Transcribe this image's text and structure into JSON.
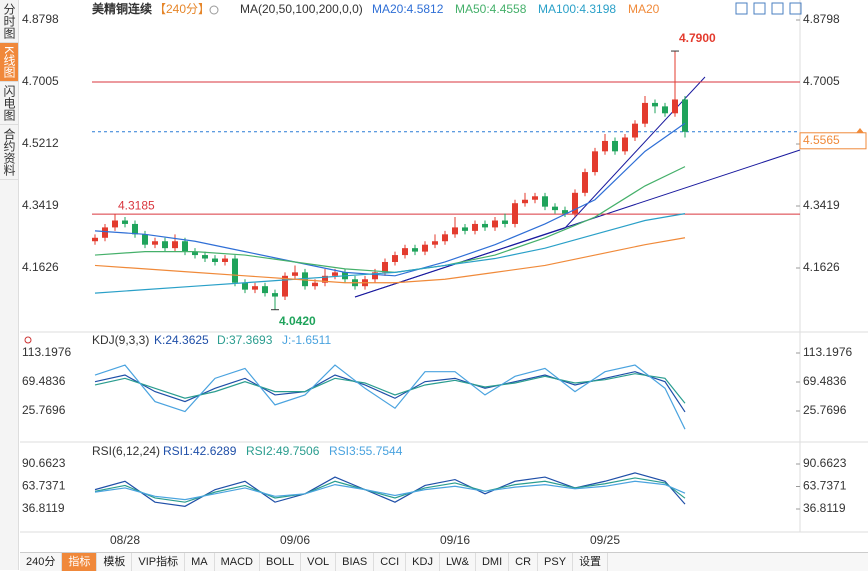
{
  "sidebar": [
    "分时图",
    "K线图",
    "闪电图",
    "合约资料"
  ],
  "toolbar": {
    "period": "240分",
    "items": [
      "指标",
      "模板",
      "VIP指标",
      "MA",
      "MACD",
      "BOLL",
      "VOL",
      "BIAS",
      "CCI",
      "KDJ",
      "LW&",
      "DMI",
      "CR",
      "PSY",
      "设置"
    ]
  },
  "chart_data": [
    {
      "type": "candlestick",
      "title": "美精铜连续",
      "subtitle": "【240分】",
      "indicator": "MA(20,50,100,200,0,0)",
      "categories": [
        null,
        null,
        null,
        "08/28",
        null,
        null,
        null,
        null,
        null,
        null,
        null,
        null,
        null,
        null,
        null,
        null,
        null,
        null,
        null,
        null,
        "09/06",
        null,
        null,
        null,
        null,
        null,
        null,
        null,
        null,
        null,
        null,
        null,
        null,
        null,
        null,
        null,
        "09/16",
        null,
        null,
        null,
        null,
        null,
        null,
        null,
        null,
        null,
        null,
        null,
        null,
        null,
        null,
        "09/25",
        null,
        null,
        null,
        null,
        null,
        null,
        null,
        null
      ],
      "open": [
        4.24,
        4.25,
        4.28,
        4.3,
        4.29,
        4.26,
        4.23,
        4.24,
        4.22,
        4.24,
        4.21,
        4.2,
        4.19,
        4.18,
        4.19,
        4.12,
        4.1,
        4.11,
        4.09,
        4.08,
        4.14,
        4.15,
        4.11,
        4.12,
        4.14,
        4.15,
        4.13,
        4.11,
        4.13,
        4.15,
        4.18,
        4.2,
        4.22,
        4.21,
        4.23,
        4.24,
        4.26,
        4.28,
        4.27,
        4.29,
        4.28,
        4.3,
        4.29,
        4.35,
        4.36,
        4.37,
        4.34,
        4.33,
        4.32,
        4.38,
        4.44,
        4.5,
        4.53,
        4.5,
        4.54,
        4.58,
        4.64,
        4.63,
        4.61,
        4.65
      ],
      "high": [
        4.26,
        4.29,
        4.3185,
        4.31,
        4.3,
        4.27,
        4.25,
        4.25,
        4.26,
        4.25,
        4.22,
        4.21,
        4.2,
        4.2,
        4.2,
        4.13,
        4.12,
        4.12,
        4.1,
        4.15,
        4.17,
        4.16,
        4.13,
        4.16,
        4.16,
        4.16,
        4.14,
        4.14,
        4.16,
        4.19,
        4.21,
        4.23,
        4.23,
        4.24,
        4.26,
        4.27,
        4.31,
        4.29,
        4.3,
        4.3,
        4.31,
        4.32,
        4.36,
        4.38,
        4.38,
        4.38,
        4.35,
        4.34,
        4.39,
        4.45,
        4.51,
        4.55,
        4.54,
        4.55,
        4.59,
        4.66,
        4.65,
        4.64,
        4.79,
        4.66
      ],
      "low": [
        4.23,
        4.24,
        4.27,
        4.28,
        4.25,
        4.22,
        4.22,
        4.21,
        4.21,
        4.2,
        4.19,
        4.18,
        4.17,
        4.17,
        4.11,
        4.09,
        4.09,
        4.08,
        4.042,
        4.07,
        4.13,
        4.1,
        4.1,
        4.11,
        4.13,
        4.12,
        4.1,
        4.1,
        4.12,
        4.14,
        4.17,
        4.19,
        4.2,
        4.2,
        4.22,
        4.23,
        4.25,
        4.26,
        4.26,
        4.27,
        4.27,
        4.28,
        4.28,
        4.34,
        4.35,
        4.33,
        4.32,
        4.31,
        4.31,
        4.37,
        4.43,
        4.49,
        4.49,
        4.49,
        4.53,
        4.57,
        4.61,
        4.6,
        4.6,
        4.54
      ],
      "close": [
        4.25,
        4.28,
        4.3,
        4.29,
        4.26,
        4.23,
        4.24,
        4.22,
        4.24,
        4.21,
        4.2,
        4.19,
        4.18,
        4.19,
        4.12,
        4.1,
        4.11,
        4.09,
        4.08,
        4.14,
        4.15,
        4.11,
        4.12,
        4.14,
        4.15,
        4.13,
        4.11,
        4.13,
        4.15,
        4.18,
        4.2,
        4.22,
        4.21,
        4.23,
        4.24,
        4.26,
        4.28,
        4.27,
        4.29,
        4.28,
        4.3,
        4.29,
        4.35,
        4.36,
        4.37,
        4.34,
        4.33,
        4.32,
        4.38,
        4.44,
        4.5,
        4.53,
        4.5,
        4.54,
        4.58,
        4.64,
        4.63,
        4.61,
        4.65,
        4.5565
      ],
      "up_color": "#e33b2e",
      "down_color": "#1fa35b",
      "x": [
        0,
        5,
        10,
        15,
        20,
        25,
        30,
        35,
        40,
        45,
        50,
        55,
        59
      ],
      "series": [
        {
          "name": "MA20:4.5812",
          "color": "#2f6fd6",
          "values": [
            4.27,
            4.26,
            4.24,
            4.21,
            4.18,
            4.15,
            4.14,
            4.18,
            4.23,
            4.29,
            4.36,
            4.5,
            4.5812
          ]
        },
        {
          "name": "MA50:4.4558",
          "color": "#45b06a",
          "values": [
            4.2,
            4.21,
            4.21,
            4.2,
            4.18,
            4.16,
            4.15,
            4.17,
            4.2,
            4.25,
            4.31,
            4.4,
            4.4558
          ]
        },
        {
          "name": "MA100:4.3198",
          "color": "#2aa0c8",
          "values": [
            4.09,
            4.1,
            4.11,
            4.12,
            4.13,
            4.14,
            4.15,
            4.17,
            4.19,
            4.22,
            4.26,
            4.3,
            4.3198
          ]
        },
        {
          "name": "MA20",
          "color": "#f08a3a",
          "values": [
            4.17,
            4.16,
            4.15,
            4.14,
            4.13,
            4.12,
            4.12,
            4.13,
            4.15,
            4.17,
            4.2,
            4.23,
            4.25
          ]
        }
      ],
      "ylim": [
        3.9833,
        4.9145
      ],
      "yticks": [
        4.1626,
        4.3419,
        4.5212,
        4.7005,
        4.8798
      ],
      "hlines": [
        {
          "value": 4.7005,
          "color": "#d9363e"
        },
        {
          "value": 4.3185,
          "color": "#d9363e",
          "label": "4.3185"
        }
      ],
      "price_line": 4.5565,
      "annotations": [
        {
          "value": 4.79,
          "label": "4.7900",
          "color": "#e33b2e"
        },
        {
          "value": 4.042,
          "label": "4.0420",
          "color": "#1fa35b"
        }
      ]
    },
    {
      "type": "line",
      "title": "KDJ(9,3,3)",
      "x": [
        0,
        3,
        6,
        9,
        12,
        15,
        18,
        21,
        24,
        27,
        30,
        33,
        36,
        39,
        42,
        45,
        48,
        51,
        54,
        57,
        59
      ],
      "series": [
        {
          "name": "K:24.3625",
          "color": "#1f4fa8",
          "values": [
            70,
            80,
            55,
            40,
            60,
            75,
            50,
            55,
            80,
            65,
            45,
            70,
            75,
            60,
            70,
            80,
            65,
            75,
            85,
            70,
            24.3625
          ]
        },
        {
          "name": "D:37.3693",
          "color": "#2a9d8f",
          "values": [
            65,
            75,
            60,
            45,
            55,
            70,
            55,
            55,
            75,
            68,
            50,
            65,
            72,
            62,
            68,
            78,
            68,
            73,
            82,
            75,
            37.3693
          ]
        },
        {
          "name": "J:-1.6511",
          "color": "#4aa3df",
          "values": [
            80,
            95,
            40,
            25,
            75,
            90,
            35,
            50,
            95,
            60,
            30,
            85,
            85,
            50,
            78,
            90,
            55,
            85,
            95,
            60,
            -1.6511
          ]
        }
      ],
      "ylim": [
        -17.94,
        140.33
      ],
      "yticks": [
        25.7696,
        69.4836,
        113.1976
      ]
    },
    {
      "type": "line",
      "title": "RSI(6,12,24)",
      "x": [
        0,
        3,
        6,
        9,
        12,
        15,
        18,
        21,
        24,
        27,
        30,
        33,
        36,
        39,
        42,
        45,
        48,
        51,
        54,
        57,
        59
      ],
      "series": [
        {
          "name": "RSI1:42.6289",
          "color": "#1f4fa8",
          "values": [
            60,
            70,
            45,
            40,
            60,
            70,
            45,
            55,
            75,
            60,
            45,
            65,
            72,
            55,
            70,
            75,
            62,
            70,
            80,
            70,
            42.6289
          ]
        },
        {
          "name": "RSI2:49.7506",
          "color": "#2a9d8f",
          "values": [
            58,
            65,
            50,
            45,
            57,
            65,
            50,
            55,
            70,
            60,
            50,
            62,
            68,
            58,
            66,
            70,
            62,
            67,
            74,
            68,
            49.7506
          ]
        },
        {
          "name": "RSI3:55.7544",
          "color": "#4aa3df",
          "values": [
            57,
            62,
            52,
            48,
            55,
            62,
            52,
            55,
            66,
            60,
            53,
            60,
            64,
            58,
            63,
            66,
            61,
            64,
            70,
            66,
            55.7544
          ]
        }
      ],
      "ylim": [
        11.68,
        113.4
      ],
      "yticks": [
        36.8119,
        63.7371,
        90.6623
      ]
    }
  ]
}
